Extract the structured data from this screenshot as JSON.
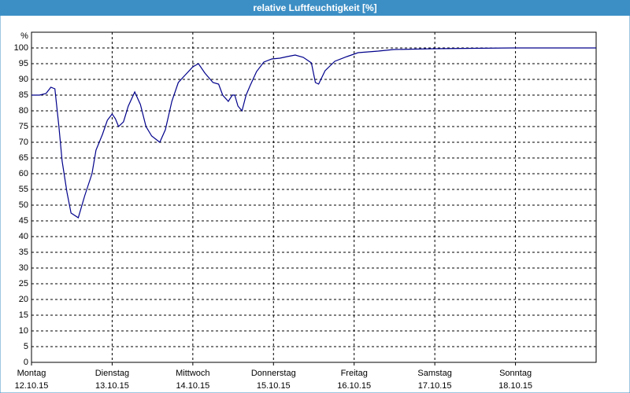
{
  "chart_data": {
    "type": "line",
    "title": "relative Luftfeuchtigkeit [%]",
    "y_label": "%",
    "x": [
      0,
      0.1,
      0.18,
      0.24,
      0.29,
      0.34,
      0.38,
      0.44,
      0.49,
      0.58,
      0.66,
      0.75,
      0.8,
      0.88,
      0.94,
      1.0,
      1.04,
      1.08,
      1.14,
      1.2,
      1.28,
      1.35,
      1.42,
      1.49,
      1.59,
      1.66,
      1.74,
      1.82,
      1.91,
      2.0,
      2.07,
      2.15,
      2.25,
      2.32,
      2.37,
      2.44,
      2.49,
      2.52,
      2.56,
      2.61,
      2.66,
      2.71,
      2.79,
      2.88,
      2.98,
      3.08,
      3.17,
      3.27,
      3.37,
      3.47,
      3.52,
      3.56,
      3.64,
      3.76,
      3.91,
      4.05,
      4.3,
      4.49,
      4.98,
      5.96,
      7.0
    ],
    "series": [
      {
        "color": "#00008b",
        "values": [
          85,
          85,
          85.5,
          87.5,
          87,
          75,
          64,
          54,
          47.5,
          46,
          53,
          60,
          67.5,
          72.5,
          77,
          79,
          77.5,
          75,
          76.5,
          81.5,
          86,
          82,
          75,
          72,
          70,
          74,
          83,
          89,
          91.5,
          94,
          95,
          92,
          89,
          88.5,
          85,
          83,
          85,
          85,
          81.5,
          80,
          85,
          88,
          92.5,
          95.5,
          96.5,
          96.75,
          97.25,
          97.75,
          97,
          95.25,
          89,
          88.5,
          92.75,
          95.75,
          97.25,
          98.5,
          99,
          99.5,
          99.75,
          100,
          100
        ]
      }
    ],
    "xlim": [
      0,
      7
    ],
    "xticks": [
      {
        "value": 0,
        "label": "Montag"
      },
      {
        "value": 1,
        "label": "Dienstag"
      },
      {
        "value": 2,
        "label": "Mittwoch"
      },
      {
        "value": 3,
        "label": "Donnerstag"
      },
      {
        "value": 4,
        "label": "Freitag"
      },
      {
        "value": 5,
        "label": "Samstag"
      },
      {
        "value": 6,
        "label": "Sonntag"
      }
    ],
    "xtick_dates": [
      "12.10.15",
      "13.10.15",
      "14.10.15",
      "15.10.15",
      "16.10.15",
      "17.10.15",
      "18.10.15"
    ],
    "ylim": [
      0,
      105
    ],
    "yticks": [
      0,
      5,
      10,
      15,
      20,
      25,
      30,
      35,
      40,
      45,
      50,
      55,
      60,
      65,
      70,
      75,
      80,
      85,
      90,
      95,
      100
    ],
    "grid": true
  }
}
